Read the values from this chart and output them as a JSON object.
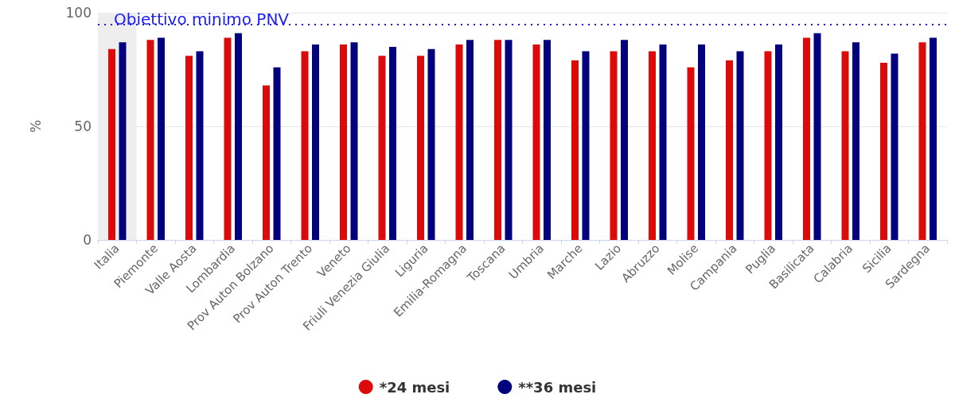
{
  "chart_data": {
    "type": "bar",
    "ylabel": "%",
    "categories": [
      "Italia",
      "Piemonte",
      "Valle Aosta",
      "Lombardia",
      "Prov Auton Bolzano",
      "Prov Auton Trento",
      "Veneto",
      "Friuli Venezia Giulia",
      "Liguria",
      "Emilia-Romagna",
      "Toscana",
      "Umbria",
      "Marche",
      "Lazio",
      "Abruzzo",
      "Molise",
      "Campania",
      "Puglia",
      "Basilicata",
      "Calabria",
      "Sicilia",
      "Sardegna"
    ],
    "series": [
      {
        "name": "*24 mesi",
        "color": "#dd0a0a",
        "values": [
          84,
          88,
          81,
          89,
          68,
          83,
          86,
          81,
          81,
          86,
          88,
          86,
          79,
          83,
          83,
          76,
          79,
          83,
          89,
          83,
          78,
          87
        ]
      },
      {
        "name": "**36 mesi",
        "color": "#02027f",
        "values": [
          87,
          89,
          83,
          91,
          76,
          86,
          87,
          85,
          84,
          88,
          88,
          88,
          83,
          88,
          86,
          86,
          83,
          86,
          91,
          87,
          82,
          89
        ]
      }
    ],
    "ylim": [
      0,
      100
    ],
    "yticks": [
      0,
      50,
      100
    ],
    "grid": "y",
    "legend": "bottom",
    "ref_lines": [
      {
        "axis": "y",
        "value": 95,
        "label": "Obiettivo minimo PNV",
        "color": "#1a1aff",
        "line_style": "dotted"
      }
    ],
    "bands": [
      {
        "axis": "x",
        "from": "Italia",
        "to": "Italia",
        "color": "#eeeeee"
      }
    ]
  }
}
